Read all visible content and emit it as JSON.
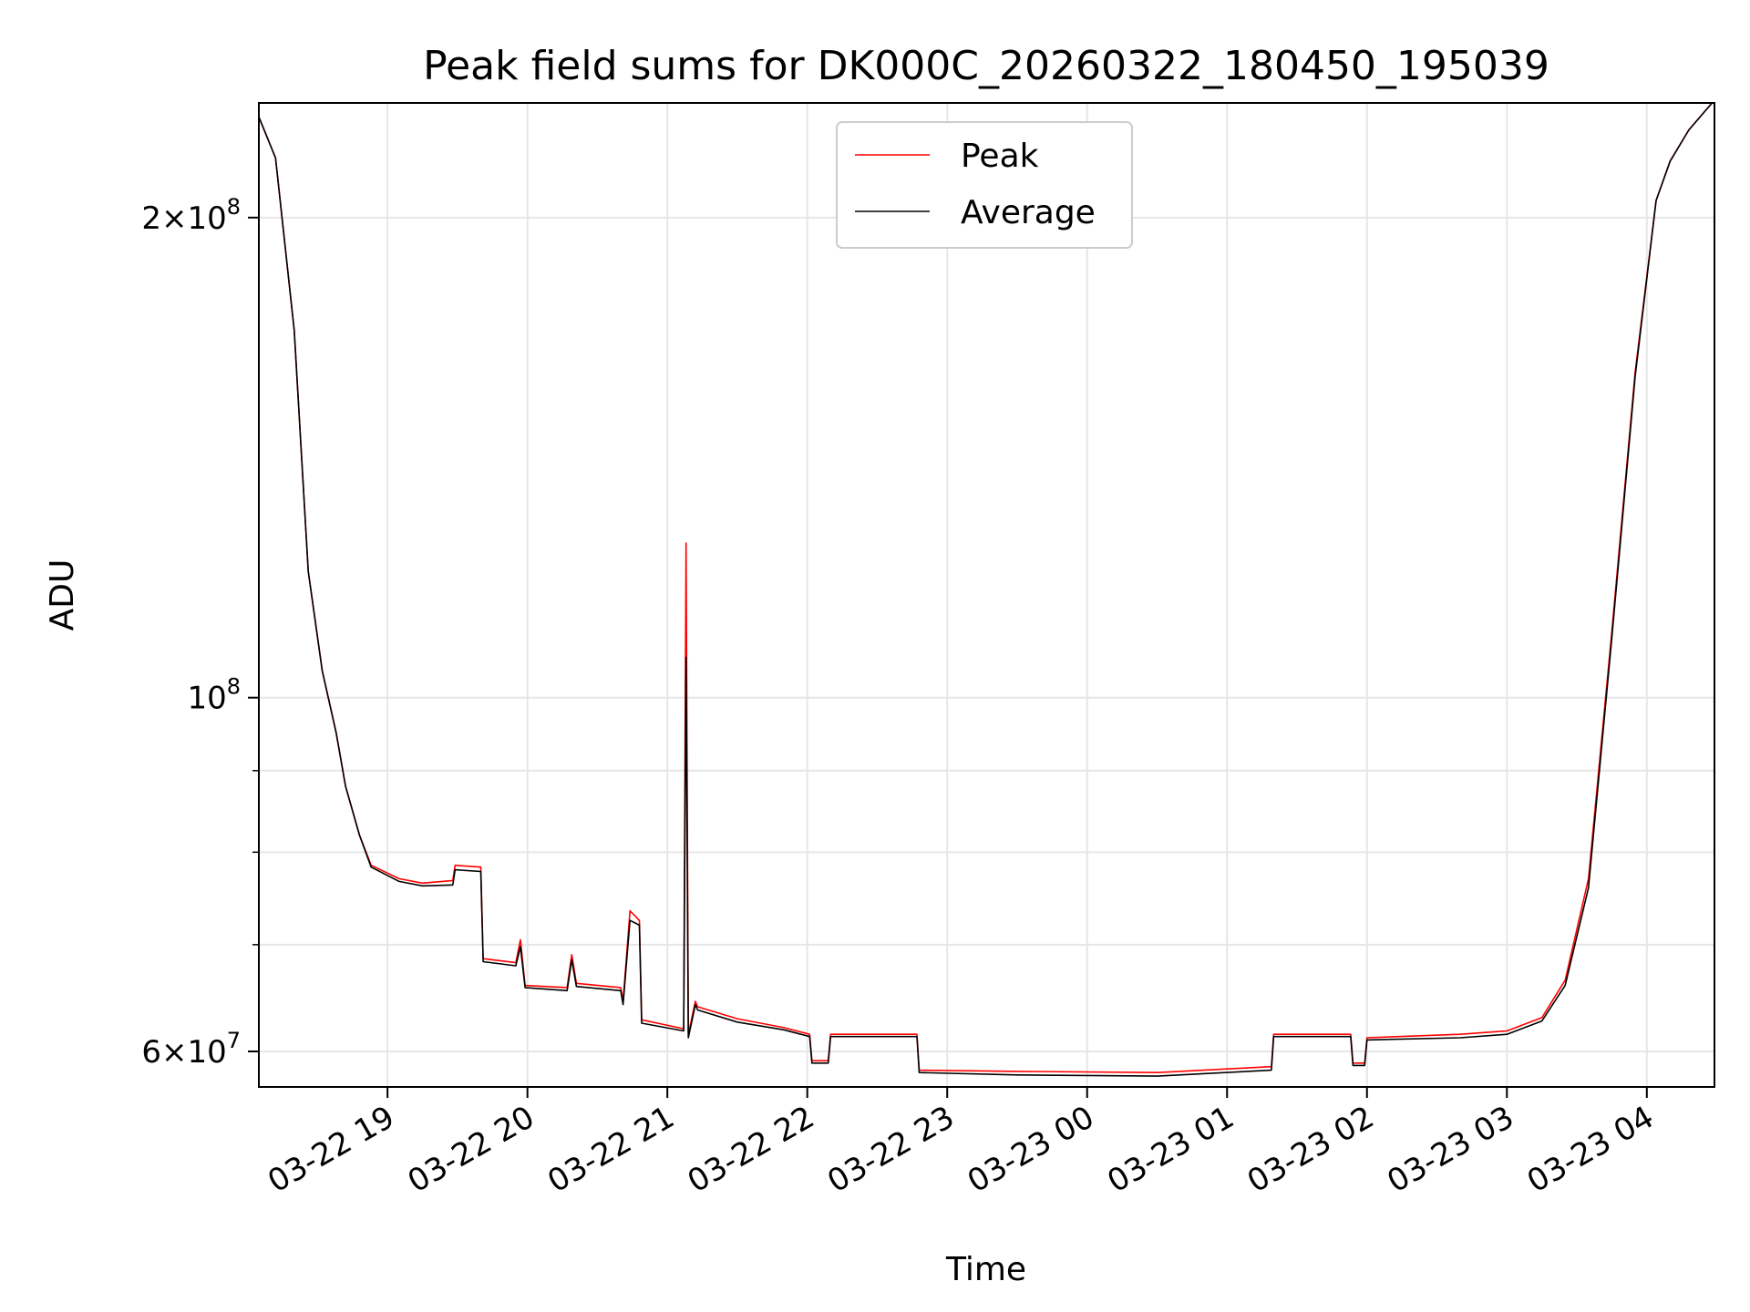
{
  "chart_data": {
    "type": "line",
    "title": "Peak field sums for DK000C_20260322_180450_195039",
    "xlabel": "Time",
    "ylabel": "ADU",
    "y_scale": "log",
    "xlim": [
      "2026-03-22 18:04:50",
      "2026-03-23 04:29:00"
    ],
    "ylim": [
      57000000,
      236000000
    ],
    "grid": true,
    "legend_position": "upper center",
    "x_tick_labels": [
      "03-22 19",
      "03-22 20",
      "03-22 21",
      "03-22 22",
      "03-22 23",
      "03-23 00",
      "03-23 01",
      "03-23 02",
      "03-23 03",
      "03-23 04"
    ],
    "x_tick_values": [
      "2026-03-22 19:00",
      "2026-03-22 20:00",
      "2026-03-22 21:00",
      "2026-03-22 22:00",
      "2026-03-22 23:00",
      "2026-03-23 00:00",
      "2026-03-23 01:00",
      "2026-03-23 02:00",
      "2026-03-23 03:00",
      "2026-03-23 04:00"
    ],
    "y_tick_labels": [
      {
        "value": 60000000,
        "mantissa": "6",
        "exp": "7"
      },
      {
        "value": 100000000,
        "mantissa": "",
        "exp": "8"
      },
      {
        "value": 200000000,
        "mantissa": "2",
        "exp": "8"
      }
    ],
    "y_minor_ticks": [
      70000000,
      80000000,
      90000000
    ],
    "series": [
      {
        "name": "Peak",
        "color": "#ff0000",
        "x": [
          "2026-03-22 18:05",
          "2026-03-22 18:12",
          "2026-03-22 18:20",
          "2026-03-22 18:26",
          "2026-03-22 18:32",
          "2026-03-22 18:38",
          "2026-03-22 18:42",
          "2026-03-22 18:48",
          "2026-03-22 18:53",
          "2026-03-22 19:05",
          "2026-03-22 19:15",
          "2026-03-22 19:28",
          "2026-03-22 19:29",
          "2026-03-22 19:40",
          "2026-03-22 19:41",
          "2026-03-22 19:55",
          "2026-03-22 19:57",
          "2026-03-22 19:59",
          "2026-03-22 20:17",
          "2026-03-22 20:19",
          "2026-03-22 20:21",
          "2026-03-22 20:40",
          "2026-03-22 20:41",
          "2026-03-22 20:44",
          "2026-03-22 20:48",
          "2026-03-22 20:49",
          "2026-03-22 21:07",
          "2026-03-22 21:08",
          "2026-03-22 21:09",
          "2026-03-22 21:12",
          "2026-03-22 21:13",
          "2026-03-22 21:30",
          "2026-03-22 21:50",
          "2026-03-22 22:01",
          "2026-03-22 22:02",
          "2026-03-22 22:09",
          "2026-03-22 22:10",
          "2026-03-22 22:47",
          "2026-03-22 22:48",
          "2026-03-22 23:30",
          "2026-03-23 00:30",
          "2026-03-23 01:19",
          "2026-03-23 01:20",
          "2026-03-23 01:53",
          "2026-03-23 01:54",
          "2026-03-23 01:59",
          "2026-03-23 02:00",
          "2026-03-23 02:40",
          "2026-03-23 03:00",
          "2026-03-23 03:15",
          "2026-03-23 03:25",
          "2026-03-23 03:35",
          "2026-03-23 03:45",
          "2026-03-23 03:55",
          "2026-03-23 04:04",
          "2026-03-23 04:10",
          "2026-03-23 04:18",
          "2026-03-23 04:28"
        ],
        "y": [
          231000000,
          218000000,
          170000000,
          120000000,
          104000000,
          95000000,
          88000000,
          82000000,
          78500000,
          77000000,
          76500000,
          76800000,
          78500000,
          78300000,
          68600000,
          68200000,
          70500000,
          66000000,
          65800000,
          69000000,
          66200000,
          65800000,
          64500000,
          73500000,
          72500000,
          62800000,
          62000000,
          125000000,
          61500000,
          64500000,
          64000000,
          62900000,
          62100000,
          61500000,
          59200000,
          59200000,
          61500000,
          61500000,
          58400000,
          58300000,
          58200000,
          58700000,
          61500000,
          61500000,
          59000000,
          59000000,
          61200000,
          61500000,
          61800000,
          63000000,
          66500000,
          77000000,
          110000000,
          160000000,
          205000000,
          217000000,
          227000000,
          236000000
        ]
      },
      {
        "name": "Average",
        "color": "#000000",
        "x": [
          "2026-03-22 18:05",
          "2026-03-22 18:12",
          "2026-03-22 18:20",
          "2026-03-22 18:26",
          "2026-03-22 18:32",
          "2026-03-22 18:38",
          "2026-03-22 18:42",
          "2026-03-22 18:48",
          "2026-03-22 18:53",
          "2026-03-22 19:05",
          "2026-03-22 19:15",
          "2026-03-22 19:28",
          "2026-03-22 19:29",
          "2026-03-22 19:40",
          "2026-03-22 19:41",
          "2026-03-22 19:55",
          "2026-03-22 19:57",
          "2026-03-22 19:59",
          "2026-03-22 20:17",
          "2026-03-22 20:19",
          "2026-03-22 20:21",
          "2026-03-22 20:40",
          "2026-03-22 20:41",
          "2026-03-22 20:44",
          "2026-03-22 20:48",
          "2026-03-22 20:49",
          "2026-03-22 21:07",
          "2026-03-22 21:08",
          "2026-03-22 21:09",
          "2026-03-22 21:12",
          "2026-03-22 21:13",
          "2026-03-22 21:30",
          "2026-03-22 21:50",
          "2026-03-22 22:01",
          "2026-03-22 22:02",
          "2026-03-22 22:09",
          "2026-03-22 22:10",
          "2026-03-22 22:47",
          "2026-03-22 22:48",
          "2026-03-22 23:30",
          "2026-03-23 00:30",
          "2026-03-23 01:19",
          "2026-03-23 01:20",
          "2026-03-23 01:53",
          "2026-03-23 01:54",
          "2026-03-23 01:59",
          "2026-03-23 02:00",
          "2026-03-23 02:40",
          "2026-03-23 03:00",
          "2026-03-23 03:15",
          "2026-03-23 03:25",
          "2026-03-23 03:35",
          "2026-03-23 03:45",
          "2026-03-23 03:55",
          "2026-03-23 04:04",
          "2026-03-23 04:10",
          "2026-03-23 04:18",
          "2026-03-23 04:28"
        ],
        "y": [
          231000000,
          218000000,
          170000000,
          120000000,
          104000000,
          95000000,
          88000000,
          82000000,
          78300000,
          76700000,
          76200000,
          76300000,
          78000000,
          77800000,
          68300000,
          67900000,
          69800000,
          65800000,
          65500000,
          68500000,
          65900000,
          65500000,
          64200000,
          72500000,
          72000000,
          62500000,
          61800000,
          106000000,
          61200000,
          64200000,
          63700000,
          62600000,
          61900000,
          61300000,
          59000000,
          59000000,
          61300000,
          61300000,
          58200000,
          58000000,
          57900000,
          58400000,
          61300000,
          61300000,
          58800000,
          58800000,
          61000000,
          61200000,
          61500000,
          62700000,
          66000000,
          76000000,
          109000000,
          159000000,
          205000000,
          217000000,
          227000000,
          236000000
        ]
      }
    ]
  }
}
